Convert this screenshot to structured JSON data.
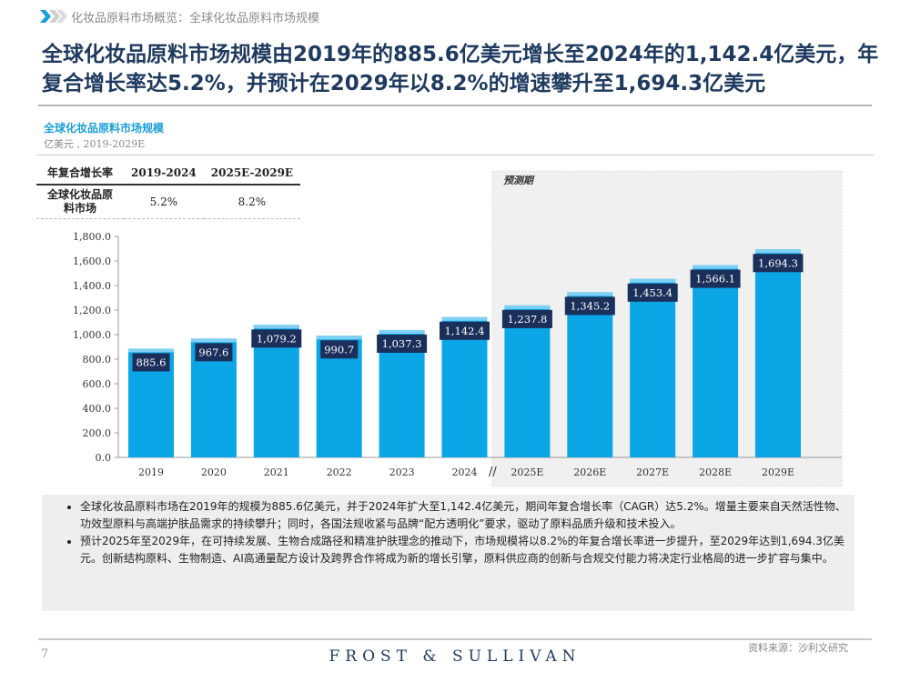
{
  "breadcrumb": "化妆品原料市场概览：全球化妆品原料市场规模",
  "title": "全球化妆品原料市场规模由2019年的885.6亿美元增长至2024年的1,142.4亿美元，年复合增长率达5.2%，并预计在2029年以8.2%的增速攀升至1,694.3亿美元",
  "chart_subtitle": "全球化妆品原料市场规模",
  "chart_unit": "亿美元 , 2019-2029E",
  "cagr_table": {
    "headers": [
      "年复合增长率",
      "2019-2024",
      "2025E-2029E"
    ],
    "row": [
      "全球化妆品原料市场",
      "5.2%",
      "8.2%"
    ]
  },
  "chart_data": {
    "type": "bar",
    "categories": [
      "2019",
      "2020",
      "2021",
      "2022",
      "2023",
      "2024",
      "2025E",
      "2026E",
      "2027E",
      "2028E",
      "2029E"
    ],
    "values": [
      885.6,
      967.6,
      1079.2,
      990.7,
      1037.3,
      1142.4,
      1237.8,
      1345.2,
      1453.4,
      1566.1,
      1694.3
    ],
    "value_labels": [
      "885.6",
      "967.6",
      "1,079.2",
      "990.7",
      "1,037.3",
      "1,142.4",
      "1,237.8",
      "1,345.2",
      "1,453.4",
      "1,566.1",
      "1,694.3"
    ],
    "ylim": [
      0,
      1800
    ],
    "yticks": [
      "0.0",
      "200.0",
      "400.0",
      "600.0",
      "800.0",
      "1,000.0",
      "1,200.0",
      "1,400.0",
      "1,600.0",
      "1,800.0"
    ],
    "forecast_label": "预测期",
    "axis_break": "//",
    "colors": {
      "bar": "#0aa6e6",
      "bar_top": "#7fd0f2",
      "label_box": "#1b2f5b",
      "forecast_shade": "#f0f0f0"
    }
  },
  "notes": [
    "全球化妆品原料市场在2019年的规模为885.6亿美元，并于2024年扩大至1,142.4亿美元，期间年复合增长率（CAGR）达5.2%。增量主要来自天然活性物、功效型原料与高端护肤品需求的持续攀升；同时，各国法规收紧与品牌“配方透明化”要求，驱动了原料品质升级和技术投入。",
    "预计2025年至2029年，在可持续发展、生物合成路径和精准护肤理念的推动下，市场规模将以8.2%的年复合增长率进一步提升，至2029年达到1,694.3亿美元。创新结构原料、生物制造、AI高通量配方设计及跨界合作将成为新的增长引擎，原料供应商的创新与合规交付能力将决定行业格局的进一步扩容与集中。"
  ],
  "footer": {
    "page": "7",
    "logo": "FROST & SULLIVAN",
    "source": "资料来源：沙利文研究"
  }
}
